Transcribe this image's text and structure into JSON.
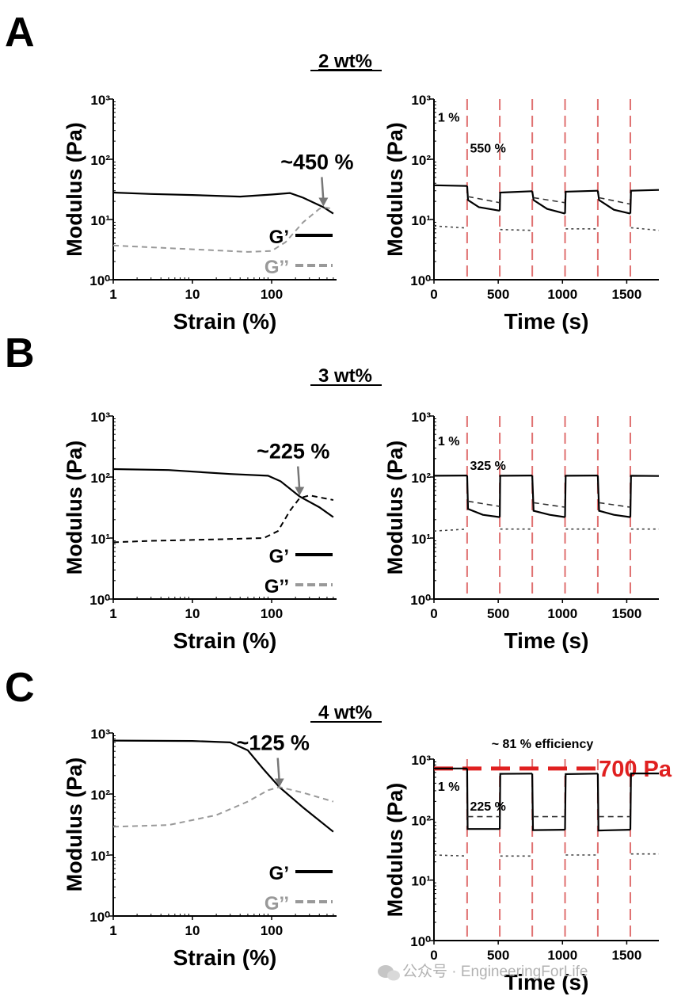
{
  "panels": [
    {
      "letter": "A",
      "title": "2 wt%"
    },
    {
      "letter": "B",
      "title": "3 wt%"
    },
    {
      "letter": "C",
      "title": "4 wt%"
    }
  ],
  "watermark": "公众号 · EngineeringForLife",
  "colors": {
    "gprime": "#000000",
    "gdouble_sweep": "#999999",
    "gdouble_time": "#444444",
    "markers": "#e07070",
    "highlight": "#e02020"
  },
  "chart_data": [
    {
      "id": "A-strain",
      "type": "line",
      "xscale": "log",
      "yscale": "log",
      "xlabel": "Strain (%)",
      "ylabel": "Modulus (Pa)",
      "xlim": [
        1,
        660
      ],
      "ylim": [
        1,
        1000
      ],
      "xticks": [
        1,
        10,
        100
      ],
      "xticklabels": [
        "1",
        "10",
        "100"
      ],
      "yticks": [
        1,
        10,
        100,
        1000
      ],
      "yticklabels": [
        "10⁰",
        "10¹",
        "10²",
        "10³"
      ],
      "annotation": {
        "text": "~450 %",
        "x": 450,
        "y": 16
      },
      "legend": [
        "G’",
        "G’’"
      ],
      "series": [
        {
          "name": "G’",
          "style": "solid",
          "points": [
            [
              1,
              28
            ],
            [
              3,
              26.5
            ],
            [
              10,
              25.5
            ],
            [
              40,
              24
            ],
            [
              100,
              26
            ],
            [
              170,
              27.5
            ],
            [
              250,
              23
            ],
            [
              450,
              16
            ],
            [
              600,
              12.5
            ]
          ]
        },
        {
          "name": "G’’",
          "style": "dashed",
          "points": [
            [
              1,
              3.7
            ],
            [
              10,
              3.2
            ],
            [
              50,
              2.9
            ],
            [
              100,
              3.0
            ],
            [
              150,
              4.2
            ],
            [
              250,
              9
            ],
            [
              400,
              15
            ],
            [
              450,
              16
            ],
            [
              600,
              15
            ]
          ]
        }
      ]
    },
    {
      "id": "A-time",
      "type": "line",
      "xscale": "linear",
      "yscale": "log",
      "xlabel": "Time (s)",
      "ylabel": "Modulus (Pa)",
      "xlim": [
        0,
        1750
      ],
      "ylim": [
        1,
        1000
      ],
      "xticks": [
        0,
        500,
        1000,
        1500
      ],
      "xticklabels": [
        "0",
        "500",
        "1000",
        "1500"
      ],
      "yticks": [
        1,
        10,
        100,
        1000
      ],
      "yticklabels": [
        "10⁰",
        "10¹",
        "10²",
        "10³"
      ],
      "step_times": [
        258,
        512,
        765,
        1020,
        1275,
        1528
      ],
      "labels": [
        {
          "text": "1 %",
          "x": 30,
          "y": 420
        },
        {
          "text": "550 %",
          "x": 280,
          "y": 130
        }
      ],
      "series": [
        {
          "name": "G’",
          "style": "solid",
          "segments": [
            [
              [
                0,
                37
              ],
              [
                258,
                36
              ]
            ],
            [
              [
                258,
                36
              ],
              [
                265,
                21
              ],
              [
                350,
                16
              ],
              [
                512,
                14
              ]
            ],
            [
              [
                512,
                14
              ],
              [
                515,
                28
              ],
              [
                765,
                29.5
              ]
            ],
            [
              [
                765,
                29.5
              ],
              [
                775,
                21
              ],
              [
                880,
                15
              ],
              [
                1020,
                12.5
              ]
            ],
            [
              [
                1020,
                12.5
              ],
              [
                1025,
                29
              ],
              [
                1275,
                30
              ]
            ],
            [
              [
                1275,
                30
              ],
              [
                1285,
                21
              ],
              [
                1400,
                14.5
              ],
              [
                1528,
                12.5
              ]
            ],
            [
              [
                1528,
                12.5
              ],
              [
                1533,
                30
              ],
              [
                1750,
                31
              ]
            ]
          ]
        },
        {
          "name": "G’’",
          "style": "dashed",
          "segments": [
            [
              [
                265,
                24
              ],
              [
                512,
                19
              ]
            ],
            [
              [
                775,
                23
              ],
              [
                1020,
                19
              ]
            ],
            [
              [
                1285,
                23
              ],
              [
                1528,
                18
              ]
            ]
          ]
        },
        {
          "name": "G’’",
          "style": "dotted",
          "segments": [
            [
              [
                0,
                7.8
              ],
              [
                258,
                7.2
              ]
            ],
            [
              [
                515,
                6.8
              ],
              [
                765,
                6.6
              ]
            ],
            [
              [
                1025,
                7.0
              ],
              [
                1275,
                7.0
              ]
            ],
            [
              [
                1533,
                7.3
              ],
              [
                1750,
                6.6
              ]
            ]
          ]
        }
      ]
    },
    {
      "id": "B-strain",
      "type": "line",
      "xscale": "log",
      "yscale": "log",
      "xlabel": "Strain (%)",
      "ylabel": "Modulus (Pa)",
      "xlim": [
        1,
        660
      ],
      "ylim": [
        1,
        1000
      ],
      "xticks": [
        1,
        10,
        100
      ],
      "xticklabels": [
        "1",
        "10",
        "100"
      ],
      "yticks": [
        1,
        10,
        100,
        1000
      ],
      "yticklabels": [
        "10⁰",
        "10¹",
        "10²",
        "10³"
      ],
      "annotation": {
        "text": "~225 %",
        "x": 225,
        "y": 48
      },
      "legend": [
        "G’",
        "G’’"
      ],
      "series": [
        {
          "name": "G’",
          "style": "solid",
          "points": [
            [
              1,
              135
            ],
            [
              5,
              130
            ],
            [
              30,
              112
            ],
            [
              90,
              105
            ],
            [
              130,
              85
            ],
            [
              225,
              48
            ],
            [
              400,
              32
            ],
            [
              600,
              22
            ]
          ]
        },
        {
          "name": "G’’",
          "style": "dashed",
          "points": [
            [
              1,
              8.5
            ],
            [
              3,
              9
            ],
            [
              20,
              9.5
            ],
            [
              80,
              10
            ],
            [
              120,
              13
            ],
            [
              170,
              28
            ],
            [
              225,
              45
            ],
            [
              300,
              50
            ],
            [
              600,
              42
            ]
          ]
        }
      ]
    },
    {
      "id": "B-time",
      "type": "line",
      "xscale": "linear",
      "yscale": "log",
      "xlabel": "Time (s)",
      "ylabel": "Modulus (Pa)",
      "xlim": [
        0,
        1750
      ],
      "ylim": [
        1,
        1000
      ],
      "xticks": [
        0,
        500,
        1000,
        1500
      ],
      "xticklabels": [
        "0",
        "500",
        "1000",
        "1500"
      ],
      "yticks": [
        1,
        10,
        100,
        1000
      ],
      "yticklabels": [
        "10⁰",
        "10¹",
        "10²",
        "10³"
      ],
      "step_times": [
        258,
        512,
        765,
        1020,
        1275,
        1528
      ],
      "labels": [
        {
          "text": "1 %",
          "x": 30,
          "y": 330
        },
        {
          "text": "325 %",
          "x": 280,
          "y": 130
        }
      ],
      "series": [
        {
          "name": "G’",
          "style": "solid",
          "segments": [
            [
              [
                0,
                105
              ],
              [
                258,
                106
              ]
            ],
            [
              [
                258,
                106
              ],
              [
                265,
                30
              ],
              [
                380,
                24
              ],
              [
                512,
                22
              ]
            ],
            [
              [
                512,
                22
              ],
              [
                515,
                105
              ],
              [
                765,
                106
              ]
            ],
            [
              [
                765,
                106
              ],
              [
                775,
                28
              ],
              [
                900,
                24
              ],
              [
                1020,
                22
              ]
            ],
            [
              [
                1020,
                22
              ],
              [
                1025,
                105
              ],
              [
                1275,
                106
              ]
            ],
            [
              [
                1275,
                106
              ],
              [
                1285,
                28
              ],
              [
                1400,
                24
              ],
              [
                1528,
                22
              ]
            ],
            [
              [
                1528,
                22
              ],
              [
                1533,
                105
              ],
              [
                1750,
                104
              ]
            ]
          ]
        },
        {
          "name": "G’’",
          "style": "dashed",
          "segments": [
            [
              [
                265,
                40
              ],
              [
                512,
                33
              ]
            ],
            [
              [
                775,
                38
              ],
              [
                1020,
                32
              ]
            ],
            [
              [
                1285,
                38
              ],
              [
                1528,
                32
              ]
            ]
          ]
        },
        {
          "name": "G’’",
          "style": "dotted",
          "segments": [
            [
              [
                0,
                13
              ],
              [
                258,
                14
              ]
            ],
            [
              [
                515,
                14
              ],
              [
                765,
                14
              ]
            ],
            [
              [
                1025,
                14
              ],
              [
                1275,
                14
              ]
            ],
            [
              [
                1533,
                14
              ],
              [
                1750,
                14
              ]
            ]
          ]
        }
      ]
    },
    {
      "id": "C-strain",
      "type": "line",
      "xscale": "log",
      "yscale": "log",
      "xlabel": "Strain (%)",
      "ylabel": "Modulus (Pa)",
      "xlim": [
        1,
        660
      ],
      "ylim": [
        1,
        1000
      ],
      "xticks": [
        1,
        10,
        100
      ],
      "xticklabels": [
        "1",
        "10",
        "100"
      ],
      "yticks": [
        1,
        10,
        100,
        1000
      ],
      "yticklabels": [
        "10⁰",
        "10¹",
        "10²",
        "10³"
      ],
      "annotation": {
        "text": "~125 %",
        "x": 125,
        "y": 125
      },
      "legend": [
        "G’",
        "G’’"
      ],
      "series": [
        {
          "name": "G’",
          "style": "solid",
          "points": [
            [
              1,
              750
            ],
            [
              10,
              740
            ],
            [
              30,
              700
            ],
            [
              50,
              520
            ],
            [
              80,
              250
            ],
            [
              125,
              130
            ],
            [
              250,
              60
            ],
            [
              600,
              24
            ]
          ]
        },
        {
          "name": "G’’",
          "style": "dashed",
          "points": [
            [
              1,
              29
            ],
            [
              5,
              31
            ],
            [
              20,
              45
            ],
            [
              50,
              75
            ],
            [
              90,
              115
            ],
            [
              125,
              130
            ],
            [
              250,
              105
            ],
            [
              600,
              75
            ]
          ]
        }
      ]
    },
    {
      "id": "C-time",
      "type": "line",
      "xscale": "linear",
      "yscale": "log",
      "xlabel": "Time (s)",
      "ylabel": "Modulus (Pa)",
      "xlim": [
        0,
        1750
      ],
      "ylim": [
        1,
        1000
      ],
      "xticks": [
        0,
        500,
        1000,
        1500
      ],
      "xticklabels": [
        "0",
        "500",
        "1000",
        "1500"
      ],
      "yticks": [
        1,
        10,
        100,
        1000
      ],
      "yticklabels": [
        "10⁰",
        "10¹",
        "10²",
        "10³"
      ],
      "step_times": [
        258,
        512,
        765,
        1020,
        1275,
        1528
      ],
      "labels": [
        {
          "text": "1 %",
          "x": 30,
          "y": 300
        },
        {
          "text": "225 %",
          "x": 280,
          "y": 140
        }
      ],
      "reference_line": {
        "value": 700,
        "label": "700 Pa"
      },
      "top_note": "~ 81 % efficiency",
      "series": [
        {
          "name": "G’",
          "style": "solid",
          "segments": [
            [
              [
                0,
                700
              ],
              [
                258,
                700
              ]
            ],
            [
              [
                258,
                700
              ],
              [
                262,
                70
              ],
              [
                512,
                70
              ]
            ],
            [
              [
                512,
                70
              ],
              [
                516,
                570
              ],
              [
                765,
                575
              ]
            ],
            [
              [
                765,
                575
              ],
              [
                770,
                67
              ],
              [
                1020,
                68
              ]
            ],
            [
              [
                1020,
                68
              ],
              [
                1025,
                565
              ],
              [
                1275,
                575
              ]
            ],
            [
              [
                1275,
                575
              ],
              [
                1280,
                66
              ],
              [
                1528,
                68
              ]
            ],
            [
              [
                1528,
                68
              ],
              [
                1533,
                580
              ],
              [
                1750,
                580
              ]
            ]
          ]
        },
        {
          "name": "G’’",
          "style": "dashed",
          "segments": [
            [
              [
                262,
                112
              ],
              [
                512,
                112
              ]
            ],
            [
              [
                770,
                112
              ],
              [
                1020,
                112
              ]
            ],
            [
              [
                1280,
                112
              ],
              [
                1528,
                112
              ]
            ]
          ]
        },
        {
          "name": "G’’",
          "style": "dotted",
          "segments": [
            [
              [
                0,
                26
              ],
              [
                258,
                25
              ]
            ],
            [
              [
                516,
                25
              ],
              [
                765,
                25
              ]
            ],
            [
              [
                1025,
                26
              ],
              [
                1275,
                26
              ]
            ],
            [
              [
                1533,
                27
              ],
              [
                1750,
                27
              ]
            ]
          ]
        }
      ]
    }
  ]
}
